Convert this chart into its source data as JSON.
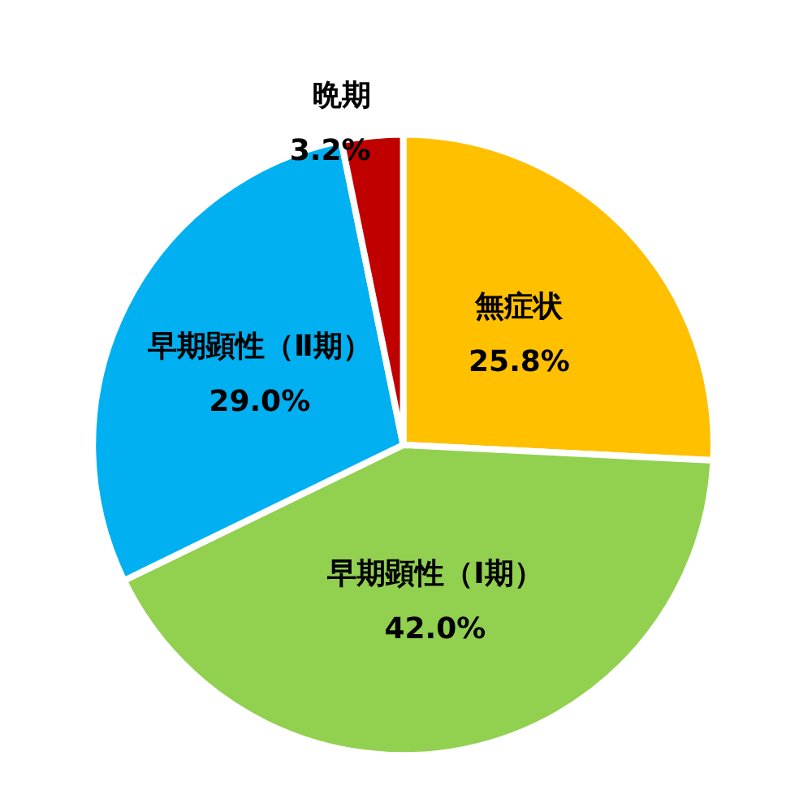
{
  "chart_data": {
    "type": "pie",
    "categories": [
      "無症状",
      "早期顕性（Ⅰ期）",
      "早期顕性（Ⅱ期）",
      "晩期"
    ],
    "values": [
      25.8,
      42.0,
      29.0,
      3.2
    ],
    "colors": [
      "#ffc000",
      "#92d050",
      "#00b0f0",
      "#c00000"
    ],
    "value_labels": [
      "25.8%",
      "42.0%",
      "29.0%",
      "3.2%"
    ],
    "legend": false
  }
}
